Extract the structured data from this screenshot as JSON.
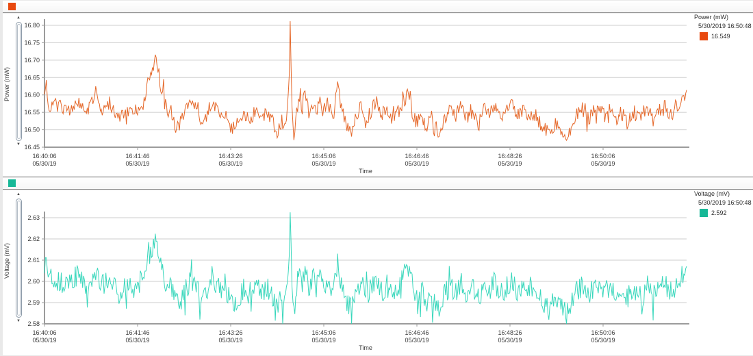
{
  "page": {
    "background": "#e9e9e9",
    "panel_background": "#ffffff"
  },
  "panels": [
    {
      "id": "power",
      "header": {
        "icon_color": "#e8490f"
      },
      "y_axis_title": "Power (mW)",
      "scrollbar": {
        "up": "▲",
        "down": "▼"
      },
      "legend": {
        "title": "Power (mW)",
        "timestamp": "5/30/2019 16:50:48",
        "value": "16.549",
        "color": "#e8490f"
      }
    },
    {
      "id": "voltage",
      "header": {
        "icon_color": "#17b897"
      },
      "y_axis_title": "Voltage (mV)",
      "scrollbar": {
        "up": "▲",
        "down": "▼"
      },
      "legend": {
        "title": "Voltage (mV)",
        "timestamp": "5/30/2019 16:50:48",
        "value": "2.592",
        "color": "#17b897"
      }
    }
  ],
  "chart_data": [
    {
      "type": "line",
      "title": "Power (mW)",
      "xlabel": "Time",
      "ylabel": "Power (mW)",
      "line_color": "#e4601f",
      "grid": true,
      "legend_position": "right-top",
      "ylim": [
        16.45,
        16.812
      ],
      "y_ticks": [
        16.45,
        16.5,
        16.55,
        16.6,
        16.65,
        16.7,
        16.75,
        16.8
      ],
      "y_tick_labels": [
        "16.45",
        "16.50",
        "16.55",
        "16.60",
        "16.65",
        "16.70",
        "16.75",
        "16.80"
      ],
      "x_ticks": [
        {
          "time": "16:40:06",
          "date": "05/30/19"
        },
        {
          "time": "16:41:46",
          "date": "05/30/19"
        },
        {
          "time": "16:43:26",
          "date": "05/30/19"
        },
        {
          "time": "16:45:06",
          "date": "05/30/19"
        },
        {
          "time": "16:46:46",
          "date": "05/30/19"
        },
        {
          "time": "16:48:26",
          "date": "05/30/19"
        },
        {
          "time": "16:50:06",
          "date": "05/30/19"
        }
      ],
      "x_range_seconds": [
        0,
        690
      ],
      "x_tick_interval_seconds": 100,
      "last_sample": {
        "timestamp": "5/30/2019 16:50:48",
        "value": 16.549
      },
      "noise_amplitude": 0.021,
      "seed": 20190530,
      "anchors": [
        [
          0,
          16.6
        ],
        [
          2,
          16.65
        ],
        [
          4,
          16.55
        ],
        [
          8,
          16.58
        ],
        [
          15,
          16.57
        ],
        [
          25,
          16.55
        ],
        [
          35,
          16.59
        ],
        [
          45,
          16.55
        ],
        [
          55,
          16.6
        ],
        [
          60,
          16.55
        ],
        [
          70,
          16.58
        ],
        [
          80,
          16.53
        ],
        [
          90,
          16.56
        ],
        [
          100,
          16.55
        ],
        [
          107,
          16.58
        ],
        [
          112,
          16.64
        ],
        [
          116,
          16.67
        ],
        [
          119,
          16.7
        ],
        [
          121,
          16.69
        ],
        [
          124,
          16.64
        ],
        [
          127,
          16.6
        ],
        [
          131,
          16.56
        ],
        [
          136,
          16.55
        ],
        [
          140,
          16.51
        ],
        [
          146,
          16.52
        ],
        [
          151,
          16.55
        ],
        [
          158,
          16.57
        ],
        [
          165,
          16.55
        ],
        [
          170,
          16.5
        ],
        [
          176,
          16.56
        ],
        [
          182,
          16.57
        ],
        [
          190,
          16.55
        ],
        [
          196,
          16.53
        ],
        [
          202,
          16.5
        ],
        [
          208,
          16.52
        ],
        [
          214,
          16.55
        ],
        [
          220,
          16.53
        ],
        [
          228,
          16.56
        ],
        [
          234,
          16.53
        ],
        [
          240,
          16.55
        ],
        [
          246,
          16.52
        ],
        [
          251,
          16.49
        ],
        [
          255,
          16.53
        ],
        [
          258,
          16.5
        ],
        [
          261,
          16.55
        ],
        [
          263,
          16.66
        ],
        [
          264,
          16.81
        ],
        [
          265,
          16.7
        ],
        [
          266,
          16.55
        ],
        [
          268,
          16.46
        ],
        [
          271,
          16.55
        ],
        [
          274,
          16.6
        ],
        [
          277,
          16.56
        ],
        [
          280,
          16.62
        ],
        [
          284,
          16.55
        ],
        [
          288,
          16.58
        ],
        [
          292,
          16.55
        ],
        [
          296,
          16.59
        ],
        [
          300,
          16.55
        ],
        [
          305,
          16.58
        ],
        [
          310,
          16.52
        ],
        [
          315,
          16.63
        ],
        [
          320,
          16.55
        ],
        [
          325,
          16.51
        ],
        [
          330,
          16.48
        ],
        [
          335,
          16.54
        ],
        [
          340,
          16.57
        ],
        [
          345,
          16.52
        ],
        [
          350,
          16.55
        ],
        [
          356,
          16.58
        ],
        [
          362,
          16.54
        ],
        [
          368,
          16.56
        ],
        [
          374,
          16.52
        ],
        [
          380,
          16.55
        ],
        [
          386,
          16.58
        ],
        [
          392,
          16.62
        ],
        [
          396,
          16.55
        ],
        [
          400,
          16.52
        ],
        [
          405,
          16.55
        ],
        [
          410,
          16.5
        ],
        [
          415,
          16.54
        ],
        [
          420,
          16.51
        ],
        [
          425,
          16.48
        ],
        [
          430,
          16.53
        ],
        [
          436,
          16.56
        ],
        [
          442,
          16.54
        ],
        [
          448,
          16.57
        ],
        [
          454,
          16.53
        ],
        [
          460,
          16.55
        ],
        [
          466,
          16.52
        ],
        [
          472,
          16.56
        ],
        [
          478,
          16.54
        ],
        [
          484,
          16.57
        ],
        [
          490,
          16.53
        ],
        [
          496,
          16.55
        ],
        [
          502,
          16.57
        ],
        [
          508,
          16.54
        ],
        [
          514,
          16.56
        ],
        [
          520,
          16.53
        ],
        [
          526,
          16.55
        ],
        [
          532,
          16.52
        ],
        [
          538,
          16.5
        ],
        [
          544,
          16.48
        ],
        [
          550,
          16.52
        ],
        [
          556,
          16.49
        ],
        [
          562,
          16.47
        ],
        [
          566,
          16.5
        ],
        [
          572,
          16.54
        ],
        [
          578,
          16.56
        ],
        [
          584,
          16.53
        ],
        [
          590,
          16.55
        ],
        [
          596,
          16.57
        ],
        [
          602,
          16.54
        ],
        [
          608,
          16.56
        ],
        [
          614,
          16.53
        ],
        [
          620,
          16.55
        ],
        [
          626,
          16.52
        ],
        [
          632,
          16.55
        ],
        [
          638,
          16.54
        ],
        [
          642,
          16.549
        ],
        [
          648,
          16.56
        ],
        [
          654,
          16.53
        ],
        [
          660,
          16.55
        ],
        [
          666,
          16.57
        ],
        [
          672,
          16.54
        ],
        [
          678,
          16.56
        ],
        [
          684,
          16.58
        ],
        [
          690,
          16.6
        ]
      ]
    },
    {
      "type": "line",
      "title": "Voltage (mV)",
      "xlabel": "Time",
      "ylabel": "Voltage (mV)",
      "line_color": "#2ed5b8",
      "grid": true,
      "legend_position": "right-top",
      "ylim": [
        2.58,
        2.638
      ],
      "y_ticks": [
        2.58,
        2.59,
        2.6,
        2.61,
        2.62,
        2.63
      ],
      "y_tick_labels": [
        "2.58",
        "2.59",
        "2.60",
        "2.61",
        "2.62",
        "2.63"
      ],
      "x_ticks": [
        {
          "time": "16:40:06",
          "date": "05/30/19"
        },
        {
          "time": "16:41:46",
          "date": "05/30/19"
        },
        {
          "time": "16:43:26",
          "date": "05/30/19"
        },
        {
          "time": "16:45:06",
          "date": "05/30/19"
        },
        {
          "time": "16:46:46",
          "date": "05/30/19"
        },
        {
          "time": "16:48:26",
          "date": "05/30/19"
        },
        {
          "time": "16:50:06",
          "date": "05/30/19"
        }
      ],
      "x_range_seconds": [
        0,
        690
      ],
      "x_tick_interval_seconds": 100,
      "last_sample": {
        "timestamp": "5/30/2019 16:50:48",
        "value": 2.592
      },
      "noise_amplitude": 0.0052,
      "seed": 971,
      "anchors": [
        [
          0,
          2.605
        ],
        [
          2,
          2.612
        ],
        [
          4,
          2.597
        ],
        [
          8,
          2.602
        ],
        [
          15,
          2.6
        ],
        [
          25,
          2.597
        ],
        [
          35,
          2.603
        ],
        [
          45,
          2.597
        ],
        [
          55,
          2.605
        ],
        [
          60,
          2.597
        ],
        [
          70,
          2.602
        ],
        [
          80,
          2.594
        ],
        [
          90,
          2.598
        ],
        [
          100,
          2.597
        ],
        [
          107,
          2.602
        ],
        [
          112,
          2.611
        ],
        [
          116,
          2.615
        ],
        [
          119,
          2.62
        ],
        [
          121,
          2.619
        ],
        [
          124,
          2.611
        ],
        [
          127,
          2.605
        ],
        [
          131,
          2.598
        ],
        [
          136,
          2.597
        ],
        [
          140,
          2.591
        ],
        [
          146,
          2.592
        ],
        [
          151,
          2.597
        ],
        [
          158,
          2.6
        ],
        [
          165,
          2.597
        ],
        [
          170,
          2.589
        ],
        [
          176,
          2.598
        ],
        [
          182,
          2.6
        ],
        [
          190,
          2.597
        ],
        [
          196,
          2.594
        ],
        [
          202,
          2.589
        ],
        [
          208,
          2.592
        ],
        [
          214,
          2.597
        ],
        [
          220,
          2.594
        ],
        [
          228,
          2.598
        ],
        [
          234,
          2.594
        ],
        [
          240,
          2.597
        ],
        [
          246,
          2.592
        ],
        [
          251,
          2.588
        ],
        [
          255,
          2.594
        ],
        [
          258,
          2.589
        ],
        [
          261,
          2.597
        ],
        [
          263,
          2.614
        ],
        [
          264,
          2.637
        ],
        [
          265,
          2.62
        ],
        [
          266,
          2.597
        ],
        [
          268,
          2.583
        ],
        [
          271,
          2.597
        ],
        [
          274,
          2.605
        ],
        [
          277,
          2.598
        ],
        [
          280,
          2.608
        ],
        [
          284,
          2.597
        ],
        [
          288,
          2.602
        ],
        [
          292,
          2.597
        ],
        [
          296,
          2.603
        ],
        [
          300,
          2.597
        ],
        [
          305,
          2.602
        ],
        [
          310,
          2.592
        ],
        [
          315,
          2.609
        ],
        [
          320,
          2.597
        ],
        [
          325,
          2.591
        ],
        [
          330,
          2.586
        ],
        [
          335,
          2.595
        ],
        [
          340,
          2.6
        ],
        [
          345,
          2.592
        ],
        [
          350,
          2.597
        ],
        [
          356,
          2.602
        ],
        [
          362,
          2.595
        ],
        [
          368,
          2.598
        ],
        [
          374,
          2.592
        ],
        [
          380,
          2.597
        ],
        [
          386,
          2.602
        ],
        [
          392,
          2.608
        ],
        [
          396,
          2.597
        ],
        [
          400,
          2.592
        ],
        [
          405,
          2.597
        ],
        [
          410,
          2.589
        ],
        [
          415,
          2.595
        ],
        [
          420,
          2.591
        ],
        [
          425,
          2.586
        ],
        [
          430,
          2.594
        ],
        [
          436,
          2.598
        ],
        [
          442,
          2.595
        ],
        [
          448,
          2.6
        ],
        [
          454,
          2.594
        ],
        [
          460,
          2.597
        ],
        [
          466,
          2.592
        ],
        [
          472,
          2.598
        ],
        [
          478,
          2.595
        ],
        [
          484,
          2.6
        ],
        [
          490,
          2.594
        ],
        [
          496,
          2.597
        ],
        [
          502,
          2.6
        ],
        [
          508,
          2.595
        ],
        [
          514,
          2.598
        ],
        [
          520,
          2.594
        ],
        [
          526,
          2.597
        ],
        [
          532,
          2.592
        ],
        [
          538,
          2.589
        ],
        [
          544,
          2.586
        ],
        [
          550,
          2.592
        ],
        [
          556,
          2.588
        ],
        [
          562,
          2.585
        ],
        [
          566,
          2.589
        ],
        [
          572,
          2.595
        ],
        [
          578,
          2.598
        ],
        [
          584,
          2.594
        ],
        [
          590,
          2.597
        ],
        [
          596,
          2.6
        ],
        [
          602,
          2.595
        ],
        [
          608,
          2.598
        ],
        [
          614,
          2.594
        ],
        [
          620,
          2.597
        ],
        [
          626,
          2.592
        ],
        [
          632,
          2.597
        ],
        [
          638,
          2.595
        ],
        [
          642,
          2.592
        ],
        [
          648,
          2.598
        ],
        [
          654,
          2.594
        ],
        [
          660,
          2.597
        ],
        [
          666,
          2.6
        ],
        [
          672,
          2.595
        ],
        [
          678,
          2.598
        ],
        [
          684,
          2.602
        ],
        [
          690,
          2.605
        ]
      ]
    }
  ]
}
